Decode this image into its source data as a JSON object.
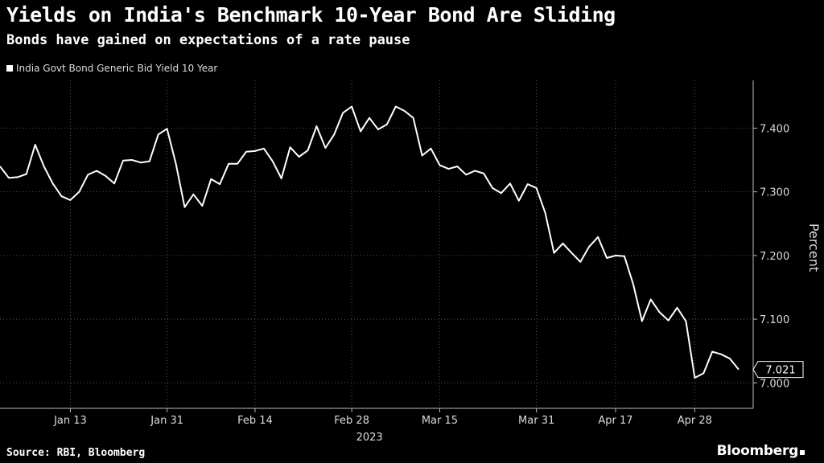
{
  "header": {
    "title": "Yields on India's Benchmark 10-Year Bond Are Sliding",
    "subtitle": "Bonds have gained on expectations of a rate pause"
  },
  "legend": {
    "label": "India Govt Bond Generic Bid Yield 10 Year"
  },
  "footer": {
    "source": "Source: RBI, Bloomberg",
    "brand": "Bloomberg"
  },
  "colors": {
    "background": "#000000",
    "line": "#ffffff",
    "grid": "#555555"
  },
  "chart_data": {
    "type": "line",
    "title": "Yields on India's Benchmark 10-Year Bond Are Sliding",
    "subtitle": "Bonds have gained on expectations of a rate pause",
    "xlabel": "2023",
    "ylabel": "Percent",
    "ylim": [
      6.96,
      7.475
    ],
    "yticks": [
      7.0,
      7.1,
      7.2,
      7.3,
      7.4
    ],
    "ytick_labels": [
      "7.000",
      "7.100",
      "7.200",
      "7.300",
      "7.400"
    ],
    "xticks": [
      {
        "index": 8,
        "label": "Jan 13"
      },
      {
        "index": 19,
        "label": "Jan 31"
      },
      {
        "index": 29,
        "label": "Feb 14"
      },
      {
        "index": 40,
        "label": "Feb 28"
      },
      {
        "index": 50,
        "label": "Mar 15"
      },
      {
        "index": 61,
        "label": "Mar 31"
      },
      {
        "index": 70,
        "label": "Apr 17"
      },
      {
        "index": 79,
        "label": "Apr 28"
      }
    ],
    "x_year_label": "2023",
    "grid": true,
    "legend_position": "top-left",
    "series": [
      {
        "name": "India Govt Bond Generic Bid Yield 10 Year",
        "values": [
          7.34,
          7.322,
          7.323,
          7.328,
          7.374,
          7.34,
          7.313,
          7.293,
          7.287,
          7.3,
          7.327,
          7.333,
          7.325,
          7.313,
          7.349,
          7.35,
          7.346,
          7.348,
          7.39,
          7.399,
          7.344,
          7.276,
          7.296,
          7.278,
          7.32,
          7.312,
          7.344,
          7.344,
          7.363,
          7.364,
          7.368,
          7.348,
          7.321,
          7.37,
          7.355,
          7.365,
          7.403,
          7.369,
          7.39,
          7.424,
          7.434,
          7.395,
          7.416,
          7.398,
          7.406,
          7.434,
          7.427,
          7.416,
          7.357,
          7.368,
          7.342,
          7.336,
          7.34,
          7.327,
          7.333,
          7.329,
          7.306,
          7.298,
          7.313,
          7.286,
          7.312,
          7.306,
          7.267,
          7.204,
          7.219,
          7.204,
          7.19,
          7.214,
          7.229,
          7.196,
          7.2,
          7.199,
          7.155,
          7.097,
          7.131,
          7.111,
          7.098,
          7.118,
          7.097,
          7.008,
          7.015,
          7.049,
          7.045,
          7.038,
          7.021
        ]
      }
    ],
    "last_value": 7.021,
    "last_value_label": "7.021"
  }
}
